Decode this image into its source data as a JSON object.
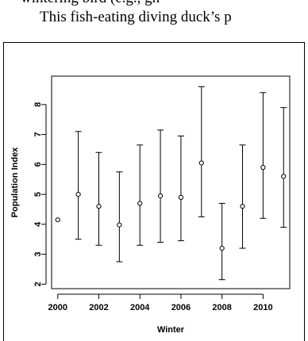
{
  "caption": {
    "line1": "wintering bird (e.g., gh",
    "line2": "This fish-eating diving duck’s p"
  },
  "chart_data": {
    "type": "scatter",
    "title": "",
    "xlabel": "Winter",
    "ylabel": "Population Index",
    "xlim": [
      1999.7,
      2011.3
    ],
    "ylim": [
      1.85,
      8.95
    ],
    "xticks": [
      2000,
      2002,
      2004,
      2006,
      2008,
      2010
    ],
    "yticks": [
      2,
      3,
      4,
      5,
      6,
      7,
      8
    ],
    "grid": false,
    "series": [
      {
        "x": [
          2000,
          2001,
          2002,
          2003,
          2004,
          2005,
          2006,
          2007,
          2008,
          2009,
          2010,
          2011
        ],
        "y": [
          4.15,
          5.0,
          4.6,
          3.98,
          4.7,
          4.95,
          4.9,
          6.05,
          3.2,
          4.6,
          5.9,
          5.6
        ],
        "lower": [
          null,
          3.5,
          3.3,
          2.75,
          3.3,
          3.4,
          3.45,
          4.25,
          2.15,
          3.2,
          4.2,
          3.9
        ],
        "upper": [
          null,
          7.1,
          6.4,
          5.75,
          6.65,
          7.15,
          6.95,
          8.6,
          4.7,
          6.65,
          8.4,
          7.9
        ]
      }
    ]
  }
}
